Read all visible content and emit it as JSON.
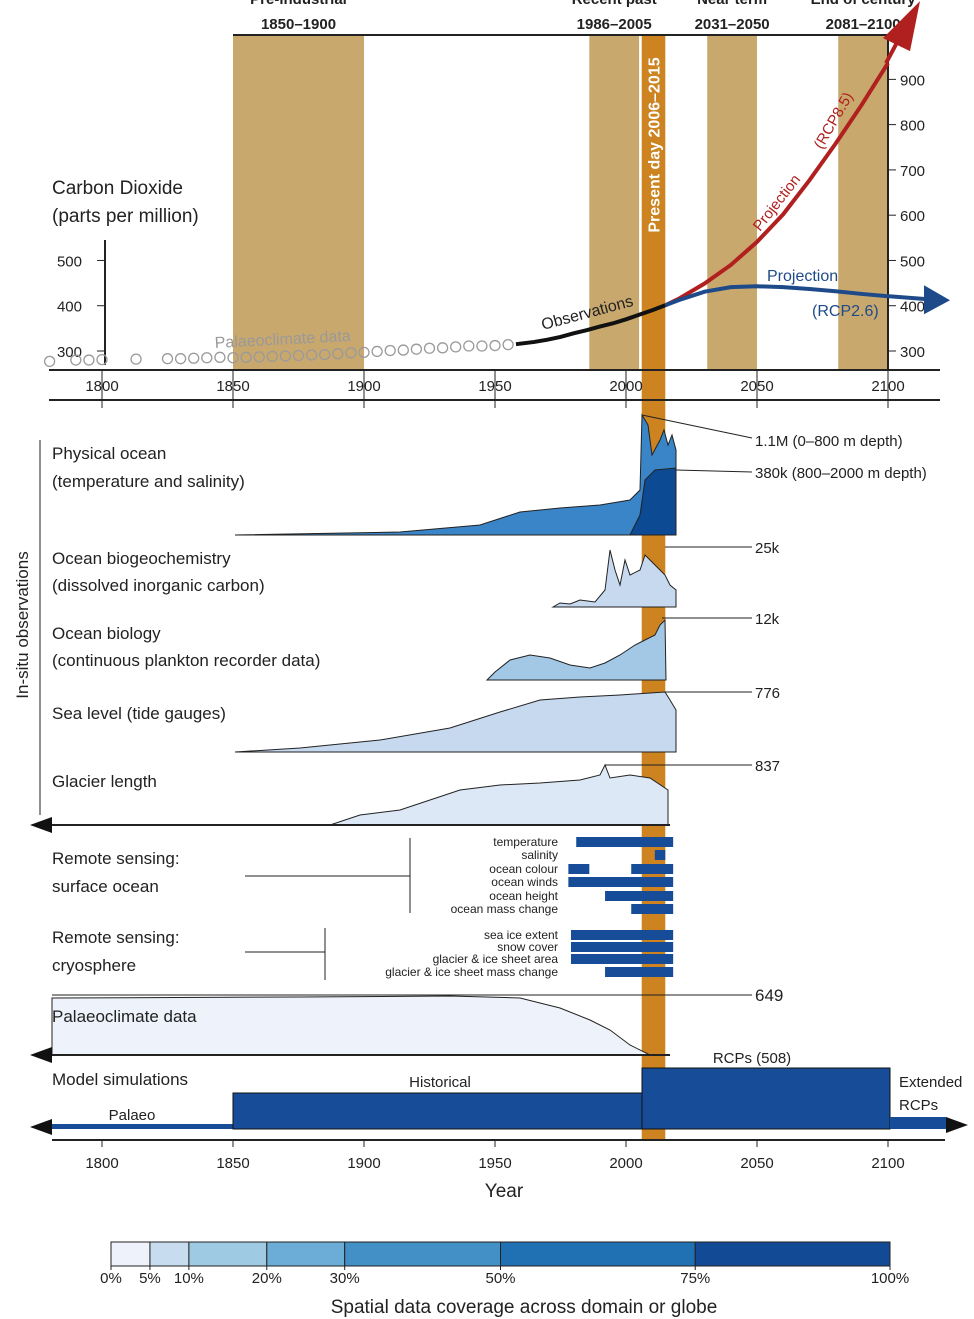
{
  "chart_data": {
    "type": "line",
    "title": "Carbon Dioxide",
    "subtitle": "(parts per million)",
    "xlim": [
      1780,
      2120
    ],
    "xticks": [
      1800,
      1850,
      1900,
      1950,
      2000,
      2050,
      2100
    ],
    "ylim": [
      258,
      998
    ],
    "yticks": [
      300,
      400,
      500
    ],
    "y2lim": [
      258,
      998
    ],
    "y2ticks": [
      300,
      400,
      500,
      600,
      700,
      800,
      900
    ],
    "bands": [
      {
        "period": "Pre-industrial",
        "label": "1850–1900",
        "start": 1850,
        "end": 1900
      },
      {
        "period": "Recent past",
        "label": "1986–2005",
        "start": 1986,
        "end": 2005
      },
      {
        "period": "Near term",
        "label": "2031–2050",
        "start": 2031,
        "end": 2050
      },
      {
        "period": "End of century",
        "label": "2081–2100",
        "start": 2081,
        "end": 2100
      }
    ],
    "present_day": {
      "label": "Present day 2006–2015",
      "start": 2006,
      "end": 2015
    },
    "series": [
      {
        "name": "Palaeoclimate data",
        "color": "#9a9a9a",
        "kind": "scatter",
        "x": [
          1780,
          1790,
          1795,
          1800,
          1813,
          1825,
          1830,
          1835,
          1840,
          1845,
          1850,
          1855,
          1860,
          1865,
          1870,
          1875,
          1880,
          1885,
          1890,
          1895,
          1900,
          1905,
          1910,
          1915,
          1920,
          1925,
          1930,
          1935,
          1940,
          1945,
          1950,
          1955
        ],
        "values": [
          277,
          280,
          280,
          281,
          282,
          283,
          283,
          284,
          285,
          286,
          285,
          286,
          287,
          288,
          289,
          290,
          291,
          292,
          294,
          296,
          297,
          299,
          301,
          302,
          304,
          306,
          307,
          309,
          311,
          311,
          312,
          314
        ]
      },
      {
        "name": "Observations",
        "color": "#111111",
        "kind": "line",
        "x": [
          1958,
          1965,
          1970,
          1975,
          1980,
          1985,
          1990,
          1995,
          2000,
          2005,
          2010,
          2015
        ],
        "values": [
          315,
          320,
          325,
          331,
          339,
          346,
          354,
          361,
          370,
          380,
          390,
          401
        ]
      },
      {
        "name": "Projection",
        "tag": "(RCP8.5)",
        "color": "#b0201e",
        "kind": "line",
        "axis": "y2",
        "x": [
          2015,
          2020,
          2030,
          2040,
          2050,
          2060,
          2070,
          2080,
          2090,
          2100
        ],
        "values": [
          401,
          415,
          449,
          490,
          541,
          602,
          677,
          758,
          844,
          936
        ]
      },
      {
        "name": "Projection",
        "tag": "(RCP2.6)",
        "color": "#1f4a8a",
        "kind": "line",
        "axis": "y2",
        "x": [
          2015,
          2020,
          2030,
          2040,
          2050,
          2060,
          2070,
          2080,
          2090,
          2100
        ],
        "values": [
          401,
          412,
          431,
          441,
          443,
          441,
          437,
          432,
          426,
          421
        ]
      }
    ]
  },
  "insitu": {
    "title": "In-situ observations",
    "panels": [
      {
        "name": "Physical ocean",
        "detail": "(temperature and salinity)",
        "labels": [
          "1.1M (0–800 m depth)",
          "380k (800–2000 m depth)"
        ]
      },
      {
        "name": "Ocean biogeochemistry",
        "detail": "(dissolved inorganic carbon)",
        "labels": [
          "25k"
        ]
      },
      {
        "name": "Ocean biology",
        "detail": "(continuous plankton recorder data)",
        "labels": [
          "12k"
        ]
      },
      {
        "name": "Sea level (tide gauges)",
        "labels": [
          "776"
        ]
      },
      {
        "name": "Glacier length",
        "labels": [
          "837"
        ]
      }
    ]
  },
  "remote_sensing": [
    {
      "name": "Remote sensing:",
      "detail": "surface ocean",
      "items": [
        {
          "label": "temperature",
          "spans": [
            [
              1981,
              2018
            ]
          ]
        },
        {
          "label": "salinity",
          "spans": [
            [
              2011,
              2015
            ]
          ]
        },
        {
          "label": "ocean colour",
          "spans": [
            [
              1978,
              1986
            ],
            [
              2002,
              2018
            ]
          ]
        },
        {
          "label": "ocean winds",
          "spans": [
            [
              1978,
              2018
            ]
          ]
        },
        {
          "label": "ocean height",
          "spans": [
            [
              1992,
              2018
            ]
          ]
        },
        {
          "label": "ocean mass change",
          "spans": [
            [
              2002,
              2018
            ]
          ]
        }
      ]
    },
    {
      "name": "Remote sensing:",
      "detail": "cryosphere",
      "items": [
        {
          "label": "sea ice extent",
          "spans": [
            [
              1979,
              2018
            ]
          ]
        },
        {
          "label": "snow cover",
          "spans": [
            [
              1979,
              2018
            ]
          ]
        },
        {
          "label": "glacier & ice sheet area",
          "spans": [
            [
              1979,
              2018
            ]
          ]
        },
        {
          "label": "glacier & ice sheet mass change",
          "spans": [
            [
              1992,
              2018
            ]
          ]
        }
      ]
    }
  ],
  "palaeoclimate": {
    "name": "Palaeoclimate data",
    "label": "649"
  },
  "models": {
    "name": "Model simulations",
    "palaeo": "Palaeo",
    "historical": "Historical",
    "rcps": "RCPs (508)",
    "extended": [
      "Extended",
      "RCPs"
    ]
  },
  "year_axis": {
    "label": "Year",
    "ticks": [
      1800,
      1850,
      1900,
      1950,
      2000,
      2050,
      2100
    ]
  },
  "colorbar": {
    "title": "Spatial data coverage across domain or globe",
    "ticks": [
      {
        "value": 0,
        "label": "0%"
      },
      {
        "value": 5,
        "label": "5%"
      },
      {
        "value": 10,
        "label": "10%"
      },
      {
        "value": 20,
        "label": "20%"
      },
      {
        "value": 30,
        "label": "30%"
      },
      {
        "value": 50,
        "label": "50%"
      },
      {
        "value": 75,
        "label": "75%"
      },
      {
        "value": 100,
        "label": "100%"
      }
    ],
    "colors": [
      "#eef3fb",
      "#c8dcf0",
      "#9fcae3",
      "#6badd6",
      "#4290c6",
      "#2070b4",
      "#124a96"
    ]
  }
}
